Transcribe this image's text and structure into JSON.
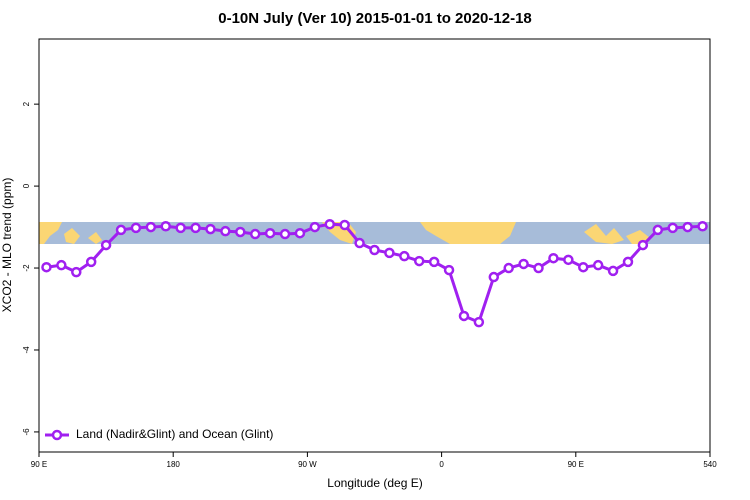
{
  "chart_data": {
    "type": "line",
    "title": "0-10N July (Ver 10)   2015-01-01 to 2020-12-18",
    "x_label": "Longitude (deg E)",
    "y_label": "XCO2 - MLO trend (ppm)",
    "x": [
      95,
      105,
      115,
      125,
      135,
      145,
      155,
      165,
      175,
      185,
      195,
      205,
      215,
      225,
      235,
      245,
      255,
      265,
      275,
      285,
      295,
      305,
      315,
      325,
      335,
      345,
      355,
      365,
      375,
      385,
      395,
      405,
      415,
      425,
      435,
      445,
      455,
      465,
      475,
      485,
      495,
      505,
      515,
      525,
      535
    ],
    "series": [
      {
        "name": "Land (Nadir&Glint) and Ocean (Glint)",
        "color": "#a020f0",
        "values": [
          -1.98,
          -1.93,
          -2.1,
          -1.85,
          -1.44,
          -1.07,
          -1.02,
          -1.0,
          -0.98,
          -1.02,
          -1.02,
          -1.05,
          -1.1,
          -1.12,
          -1.17,
          -1.15,
          -1.17,
          -1.15,
          -1.0,
          -0.93,
          -0.95,
          -1.39,
          -1.56,
          -1.63,
          -1.71,
          -1.83,
          -1.85,
          -2.05,
          -3.17,
          -3.32,
          -2.22,
          -2.0,
          -1.9,
          -2.0,
          -1.76,
          -1.8,
          -1.98,
          -1.93,
          -2.07,
          -1.85,
          -1.44,
          -1.07,
          -1.02,
          -1.0,
          -0.98
        ]
      }
    ],
    "xlim": [
      90,
      540
    ],
    "xticks": [
      {
        "value": 90,
        "label": "90 E"
      },
      180,
      {
        "value": 270,
        "label": "90 W"
      },
      {
        "value": 360,
        "label": "0"
      },
      {
        "value": 450,
        "label": "90 E"
      },
      540
    ],
    "ylim": [
      -6.49,
      3.59
    ],
    "yticks": [
      2,
      0,
      -2,
      -4,
      -6
    ],
    "legend": "bottom-left"
  }
}
